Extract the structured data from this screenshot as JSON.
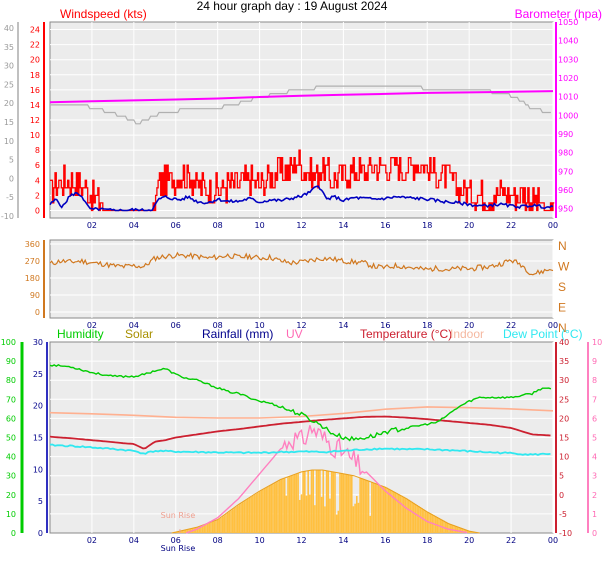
{
  "page_title": "24 hour graph day : 19 August 2024",
  "colors": {
    "plot_bg": "#ececec",
    "grid": "#ffffff",
    "axis_text": "#000080",
    "wind": "#ff0000",
    "gust_avg": "#0000c0",
    "barometer": "#ff00ff",
    "baro_faint": "#b0b0b0",
    "direction": "#d07820",
    "humidity": "#00cc00",
    "solar": "#ffc040",
    "solar_text": "#a89000",
    "rainfall": "#00008b",
    "uv": "#ff80c0",
    "uv_text": "#ff69b4",
    "temperature": "#cc2030",
    "indoor": "#ffb090",
    "indoor_text": "#f5b8a0",
    "dewpoint": "#30e8f0",
    "sun_rise": "#f0a090"
  },
  "chart_data": [
    {
      "type": "line",
      "title": "",
      "left_axis_label": "Windspeed (kts)",
      "right_axis_label": "Barometer (hpa)",
      "x_ticks": [
        "02",
        "04",
        "06",
        "08",
        "10",
        "12",
        "14",
        "16",
        "18",
        "20",
        "22",
        "00"
      ],
      "outer_left_ticks": [
        "40",
        "35",
        "30",
        "25",
        "20",
        "15",
        "10",
        "5",
        "0",
        "-5",
        "-10"
      ],
      "inner_left_ticks": [
        "24",
        "22",
        "20",
        "18",
        "16",
        "14",
        "12",
        "10",
        "8",
        "6",
        "4",
        "2",
        "0"
      ],
      "right_ticks": [
        "1050",
        "1040",
        "1030",
        "1020",
        "1010",
        "1000",
        "990",
        "980",
        "970",
        "960",
        "950"
      ],
      "ylim_knots": [
        -1,
        25
      ],
      "ylim_hpa": [
        945,
        1050
      ],
      "series": [
        {
          "key": "gust",
          "x": [
            0,
            0.4,
            0.8,
            1.2,
            1.6,
            2.0,
            2.5,
            3.0,
            3.5,
            4.0,
            4.5,
            4.9,
            5.2,
            5.6,
            6.0,
            6.5,
            7.0,
            7.5,
            8.0,
            8.5,
            9.0,
            9.5,
            10.0,
            10.5,
            11.0,
            11.5,
            11.8,
            12.2,
            12.6,
            13.0,
            13.5,
            14.0,
            14.5,
            15.0,
            15.5,
            16.0,
            16.5,
            17.0,
            17.5,
            18.0,
            18.5,
            19.0,
            19.5,
            20.0,
            20.5,
            21.0,
            21.5,
            22.0,
            22.5,
            23.0,
            23.5,
            24.0
          ],
          "y": [
            2.5,
            3.5,
            4.0,
            3.8,
            3.2,
            2.0,
            1.0,
            0.5,
            0.5,
            0.3,
            0.3,
            0.4,
            3.5,
            3.8,
            4.5,
            4.8,
            3.5,
            3.0,
            2.8,
            3.2,
            3.5,
            4.0,
            3.5,
            4.5,
            5.0,
            5.5,
            6.5,
            5.5,
            4.5,
            5.5,
            4.0,
            4.5,
            5.5,
            5.0,
            6.0,
            5.5,
            6.0,
            5.5,
            6.5,
            5.5,
            5.0,
            4.5,
            3.0,
            2.5,
            2.0,
            2.0,
            2.5,
            2.0,
            2.0,
            1.5,
            1.0,
            1.0
          ]
        },
        {
          "key": "wind_average",
          "x": [
            0,
            0.3,
            0.6,
            0.9,
            1.2,
            1.5,
            1.8,
            2.0,
            2.3,
            2.6,
            3.0,
            3.5,
            4.0,
            4.5,
            4.9,
            5.2,
            5.5,
            5.8,
            6.2,
            6.6,
            7.0,
            7.5,
            8.0,
            8.5,
            9.0,
            9.5,
            10.0,
            10.5,
            11.0,
            11.5,
            12.0,
            12.4,
            12.8,
            13.2,
            13.6,
            14.0,
            14.5,
            15.0,
            15.5,
            16.0,
            16.5,
            17.0,
            17.5,
            18.0,
            18.5,
            19.0,
            19.5,
            20.0,
            20.5,
            21.0,
            21.5,
            22.0,
            22.5,
            23.0,
            23.5,
            24.0
          ],
          "y": [
            0.8,
            1.5,
            0.4,
            1.8,
            2.3,
            2.0,
            0.5,
            0.1,
            0.2,
            0.1,
            0.0,
            0.0,
            0.1,
            0.0,
            0.2,
            1.5,
            1.8,
            1.6,
            1.4,
            1.8,
            1.2,
            1.0,
            1.5,
            1.2,
            1.2,
            1.6,
            1.1,
            1.4,
            1.3,
            1.6,
            1.9,
            2.4,
            3.4,
            1.5,
            1.8,
            1.3,
            1.7,
            1.6,
            1.5,
            1.6,
            1.8,
            1.7,
            1.6,
            1.5,
            1.3,
            1.1,
            1.0,
            0.8,
            0.6,
            0.7,
            0.8,
            0.6,
            0.5,
            0.7,
            0.5,
            0.4
          ]
        },
        {
          "key": "barometer_hpa",
          "x": [
            0,
            2,
            4,
            6,
            8,
            10,
            12,
            14,
            16,
            18,
            20,
            22,
            24
          ],
          "y": [
            1007,
            1007.5,
            1008,
            1008.5,
            1009,
            1009.8,
            1010.5,
            1011,
            1011.5,
            1012,
            1012.3,
            1012.6,
            1013
          ]
        },
        {
          "key": "barometer_faint_knots",
          "x": [
            0,
            1.5,
            2.2,
            3.5,
            4.2,
            5.2,
            6.2,
            8.0,
            9.0,
            10.0,
            11.0,
            12.0,
            13.0,
            14.0,
            15.0,
            16.0,
            17.0,
            18.0,
            19.0,
            20.0,
            21.0,
            22.0,
            22.5,
            23.0,
            24.0
          ],
          "y": [
            14.0,
            14.0,
            13.5,
            12.5,
            11.5,
            12.8,
            13.3,
            13.6,
            14.2,
            15.0,
            15.6,
            16.0,
            16.4,
            16.5,
            16.4,
            16.4,
            16.4,
            16.2,
            16.0,
            16.0,
            15.8,
            15.2,
            14.6,
            13.5,
            13.0
          ]
        }
      ]
    },
    {
      "type": "line",
      "title": "",
      "left_ticks": [
        "360",
        "270",
        "180",
        "90",
        "0"
      ],
      "right_labels": [
        "N",
        "W",
        "S",
        "E",
        "N"
      ],
      "x_ticks": [
        "02",
        "04",
        "06",
        "08",
        "10",
        "12",
        "14",
        "16",
        "18",
        "20",
        "22",
        "00"
      ],
      "ylim_degrees": [
        0,
        360
      ],
      "series": [
        {
          "key": "wind_direction",
          "x": [
            0,
            0.5,
            1,
            1.5,
            2,
            2.5,
            3,
            3.5,
            4,
            4.5,
            5,
            5.5,
            6,
            6.5,
            7,
            7.5,
            8,
            8.5,
            9,
            9.5,
            10,
            10.5,
            11,
            11.5,
            12,
            12.5,
            13,
            13.5,
            14,
            14.5,
            15,
            15.5,
            16,
            16.5,
            17,
            17.5,
            18,
            18.5,
            19,
            19.5,
            20,
            20.5,
            21,
            21.5,
            22,
            22.5,
            23,
            23.5,
            24
          ],
          "y": [
            255,
            270,
            265,
            270,
            260,
            255,
            245,
            240,
            245,
            240,
            285,
            295,
            300,
            298,
            295,
            285,
            290,
            300,
            290,
            295,
            285,
            290,
            270,
            260,
            265,
            275,
            285,
            280,
            270,
            265,
            260,
            240,
            235,
            245,
            240,
            230,
            225,
            232,
            225,
            230,
            228,
            235,
            240,
            255,
            275,
            250,
            200,
            215,
            230
          ]
        }
      ]
    },
    {
      "type": "line",
      "title": "",
      "legend": [
        "Humidity",
        "Solar",
        "Rainfall (mm)",
        "UV",
        "Temperature (°C)",
        "Indoor",
        "Dew Point (°C)"
      ],
      "x_ticks": [
        "02",
        "04",
        "06",
        "08",
        "10",
        "12",
        "14",
        "16",
        "18",
        "20",
        "22",
        "00"
      ],
      "annotation": "Sun Rise",
      "axis_humidity_ticks": [
        "100",
        "90",
        "80",
        "70",
        "60",
        "50",
        "40",
        "30",
        "20",
        "10",
        "0"
      ],
      "axis_rain_ticks": [
        "30",
        "25",
        "20",
        "15",
        "10",
        "5",
        "0"
      ],
      "axis_temp_ticks": [
        "40",
        "35",
        "30",
        "25",
        "20",
        "15",
        "10",
        "5",
        "0",
        "-5",
        "-10"
      ],
      "axis_uv_ticks": [
        "10",
        "9",
        "8",
        "7",
        "6",
        "5",
        "4",
        "3",
        "2",
        "1",
        "0"
      ],
      "ylim_humidity": [
        0,
        100
      ],
      "ylim_temperature": [
        -10,
        40
      ],
      "ylim_uv": [
        0,
        10
      ],
      "sun_rise_hour": 6.2,
      "series": [
        {
          "key": "humidity_pct",
          "x": [
            0,
            1,
            2,
            3,
            3.5,
            4,
            4.5,
            5,
            5.5,
            6,
            6.5,
            7,
            7.5,
            8,
            8.5,
            9,
            9.5,
            10,
            10.5,
            11,
            11.5,
            12,
            12.5,
            13,
            13.5,
            14,
            14.5,
            15,
            15.5,
            16,
            16.5,
            17,
            17.5,
            18,
            18.5,
            19,
            19.5,
            20,
            20.5,
            21,
            21.5,
            22,
            22.5,
            23,
            23.5,
            24
          ],
          "y": [
            88,
            87,
            84,
            82,
            82,
            82,
            83,
            85,
            86,
            83,
            81,
            80,
            78,
            76,
            74,
            73,
            71,
            69,
            68,
            66,
            64,
            62,
            59,
            56,
            52,
            50,
            49,
            50,
            51,
            53,
            54,
            55,
            56,
            57,
            58,
            62,
            66,
            69,
            71,
            71,
            71,
            71,
            72,
            73,
            76,
            75
          ]
        },
        {
          "key": "temperature_c",
          "x": [
            0,
            1,
            2,
            3,
            3.5,
            4,
            4.5,
            5,
            5.5,
            6,
            7,
            8,
            9,
            10,
            11,
            12,
            13,
            14,
            15,
            16,
            17,
            18,
            19,
            20,
            21,
            22,
            23,
            24
          ],
          "y": [
            15.2,
            14.8,
            14.3,
            13.8,
            13.5,
            13.3,
            12.0,
            13.9,
            14.3,
            15.0,
            15.8,
            16.6,
            17.2,
            17.9,
            18.6,
            19.1,
            19.6,
            20.0,
            20.4,
            20.5,
            20.2,
            19.8,
            19.3,
            18.8,
            18.3,
            17.5,
            15.8,
            15.5
          ]
        },
        {
          "key": "dewpoint_c",
          "x": [
            0,
            1,
            2,
            3,
            4,
            4.5,
            5,
            6,
            7,
            8,
            9,
            10,
            11,
            12,
            13,
            14,
            15,
            16,
            17,
            18,
            19,
            20,
            21,
            22,
            23,
            24
          ],
          "y": [
            13.0,
            12.8,
            12.4,
            12.0,
            11.5,
            10.8,
            11.5,
            11.3,
            11.2,
            11.1,
            11.0,
            11.0,
            11.2,
            11.3,
            11.2,
            11.5,
            11.9,
            12.1,
            11.9,
            11.9,
            11.7,
            11.4,
            11.1,
            10.9,
            10.5,
            10.8
          ]
        },
        {
          "key": "indoor_c",
          "x": [
            0,
            2,
            4,
            6,
            8,
            10,
            12,
            14,
            16,
            18,
            20,
            22,
            24
          ],
          "y": [
            21.5,
            21.2,
            20.8,
            20.3,
            20.1,
            20.1,
            20.5,
            21.3,
            22.4,
            23.0,
            22.8,
            22.5,
            22.0
          ]
        },
        {
          "key": "solar_envelope_pct",
          "x": [
            5.8,
            6.2,
            7.0,
            8.0,
            9.0,
            10.0,
            11.0,
            11.5,
            12.0,
            12.5,
            13.0,
            13.5,
            14.0,
            14.5,
            15.0,
            16.0,
            17.0,
            18.0,
            19.0,
            20.0,
            20.5
          ],
          "y": [
            0,
            1,
            3,
            7,
            15,
            22,
            28,
            30,
            32,
            33,
            33,
            32,
            31,
            30,
            28,
            24,
            18,
            11,
            5,
            1,
            0
          ]
        },
        {
          "key": "uv_index",
          "x": [
            6.5,
            7.0,
            8.0,
            9.0,
            10.0,
            11.0,
            11.5,
            12.0,
            12.5,
            13.0,
            13.5,
            14.0,
            15.0,
            16.0,
            17.0,
            18.0,
            19.0,
            20.0
          ],
          "y": [
            0,
            0.2,
            0.8,
            1.8,
            3.1,
            4.4,
            5.0,
            4.8,
            5.5,
            5.0,
            4.6,
            4.2,
            3.3,
            2.2,
            1.3,
            0.6,
            0.2,
            0
          ]
        }
      ]
    }
  ]
}
